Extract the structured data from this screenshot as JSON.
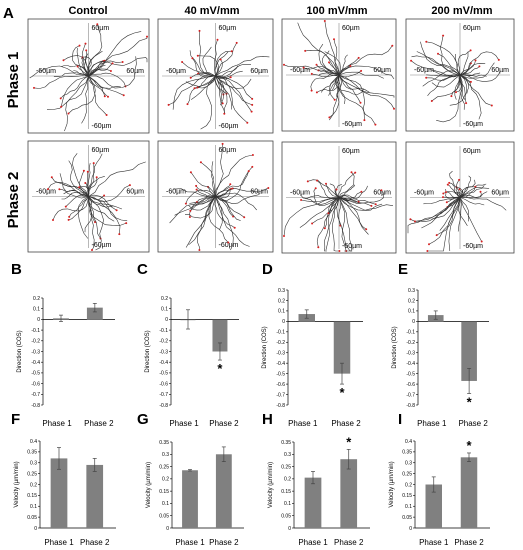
{
  "panel_a": {
    "letter": "A",
    "columns": [
      "Control",
      "40 mV/mm",
      "100 mV/mm",
      "200 mV/mm"
    ],
    "rows": [
      "Phase 1",
      "Phase 2"
    ],
    "axis_label_pos": "60µm",
    "axis_label_neg": "-60µm",
    "track_color": "#333333",
    "endpoint_color": "#d62020"
  },
  "chart_data": [
    {
      "letter": "B",
      "type": "bar",
      "categories": [
        "Phase 1",
        "Phase 2"
      ],
      "values": [
        0.01,
        0.11
      ],
      "errors": [
        0.03,
        0.04
      ],
      "significant": [
        false,
        false
      ],
      "ylabel": "Direction (COS)",
      "ylim": [
        -0.8,
        0.2
      ],
      "ticks": [
        "0.2",
        "0.1",
        "0",
        "-0.1",
        "-0.2",
        "-0.3",
        "-0.4",
        "-0.5",
        "-0.6",
        "-0.7",
        "-0.8"
      ],
      "tick_values": [
        0.2,
        0.1,
        0,
        -0.1,
        -0.2,
        -0.3,
        -0.4,
        -0.5,
        -0.6,
        -0.7,
        -0.8
      ]
    },
    {
      "letter": "C",
      "type": "bar",
      "categories": [
        "Phase 1",
        "Phase 2"
      ],
      "values": [
        0.0,
        -0.3
      ],
      "errors": [
        0.09,
        0.08
      ],
      "significant": [
        false,
        true
      ],
      "ylabel": "Direction (COS)",
      "ylim": [
        -0.8,
        0.2
      ],
      "ticks": [
        "0.2",
        "0.1",
        "0",
        "-0.1",
        "-0.2",
        "-0.3",
        "-0.4",
        "-0.5",
        "-0.6",
        "-0.7",
        "-0.8"
      ],
      "tick_values": [
        0.2,
        0.1,
        0,
        -0.1,
        -0.2,
        -0.3,
        -0.4,
        -0.5,
        -0.6,
        -0.7,
        -0.8
      ]
    },
    {
      "letter": "D",
      "type": "bar",
      "categories": [
        "Phase 1",
        "Phase 2"
      ],
      "values": [
        0.07,
        -0.5
      ],
      "errors": [
        0.04,
        0.1
      ],
      "significant": [
        false,
        true
      ],
      "ylabel": "Direction (COS)",
      "ylim": [
        -0.8,
        0.3
      ],
      "ticks": [
        "0.3",
        "0.2",
        "0.1",
        "0",
        "-0.1",
        "-0.2",
        "-0.3",
        "-0.4",
        "-0.5",
        "-0.6",
        "-0.7",
        "-0.8"
      ],
      "tick_values": [
        0.3,
        0.2,
        0.1,
        0,
        -0.1,
        -0.2,
        -0.3,
        -0.4,
        -0.5,
        -0.6,
        -0.7,
        -0.8
      ]
    },
    {
      "letter": "E",
      "type": "bar",
      "categories": [
        "Phase 1",
        "Phase 2"
      ],
      "values": [
        0.06,
        -0.57
      ],
      "errors": [
        0.04,
        0.12
      ],
      "significant": [
        false,
        true
      ],
      "ylabel": "Direction (COS)",
      "ylim": [
        -0.8,
        0.3
      ],
      "ticks": [
        "0.3",
        "0.2",
        "0.1",
        "0",
        "-0.1",
        "-0.2",
        "-0.3",
        "-0.4",
        "-0.5",
        "-0.6",
        "-0.7",
        "-0.8"
      ],
      "tick_values": [
        0.3,
        0.2,
        0.1,
        0,
        -0.1,
        -0.2,
        -0.3,
        -0.4,
        -0.5,
        -0.6,
        -0.7,
        -0.8
      ]
    },
    {
      "letter": "F",
      "type": "bar",
      "categories": [
        "Phase 1",
        "Phase 2"
      ],
      "values": [
        0.32,
        0.29
      ],
      "errors": [
        0.05,
        0.03
      ],
      "significant": [
        false,
        false
      ],
      "ylabel": "Velocity (µm/min)",
      "ylim": [
        0,
        0.4
      ],
      "ticks": [
        "0.4",
        "0.35",
        "0.3",
        "0.25",
        "0.2",
        "0.15",
        "0.1",
        "0.05",
        "0"
      ],
      "tick_values": [
        0.4,
        0.35,
        0.3,
        0.25,
        0.2,
        0.15,
        0.1,
        0.05,
        0
      ]
    },
    {
      "letter": "G",
      "type": "bar",
      "categories": [
        "Phase 1",
        "Phase 2"
      ],
      "values": [
        0.235,
        0.3
      ],
      "errors": [
        0.003,
        0.03
      ],
      "significant": [
        false,
        false
      ],
      "ylabel": "Velocity (µm/min)",
      "ylim": [
        0,
        0.35
      ],
      "ticks": [
        "0.35",
        "0.3",
        "0.25",
        "0.2",
        "0.15",
        "0.1",
        "0.05",
        "0"
      ],
      "tick_values": [
        0.35,
        0.3,
        0.25,
        0.2,
        0.15,
        0.1,
        0.05,
        0
      ]
    },
    {
      "letter": "H",
      "type": "bar",
      "categories": [
        "Phase 1",
        "Phase 2"
      ],
      "values": [
        0.205,
        0.28
      ],
      "errors": [
        0.025,
        0.04
      ],
      "significant": [
        false,
        true
      ],
      "ylabel": "Velocity (µm/min)",
      "ylim": [
        0,
        0.35
      ],
      "ticks": [
        "0.35",
        "0.3",
        "0.25",
        "0.2",
        "0.15",
        "0.1",
        "0.05",
        "0"
      ],
      "tick_values": [
        0.35,
        0.3,
        0.25,
        0.2,
        0.15,
        0.1,
        0.05,
        0
      ]
    },
    {
      "letter": "I",
      "type": "bar",
      "categories": [
        "Phase 1",
        "Phase 2"
      ],
      "values": [
        0.2,
        0.325
      ],
      "errors": [
        0.035,
        0.02
      ],
      "significant": [
        false,
        true
      ],
      "ylabel": "Velocity (µm/min)",
      "ylim": [
        0,
        0.4
      ],
      "ticks": [
        "0.4",
        "0.35",
        "0.3",
        "0.25",
        "0.2",
        "0.15",
        "0.1",
        "0.05",
        "0"
      ],
      "tick_values": [
        0.4,
        0.35,
        0.3,
        0.25,
        0.2,
        0.15,
        0.1,
        0.05,
        0
      ]
    }
  ],
  "style": {
    "bar_color": "#808080",
    "axis_color": "#000000",
    "error_color": "#444444",
    "star": "*"
  }
}
